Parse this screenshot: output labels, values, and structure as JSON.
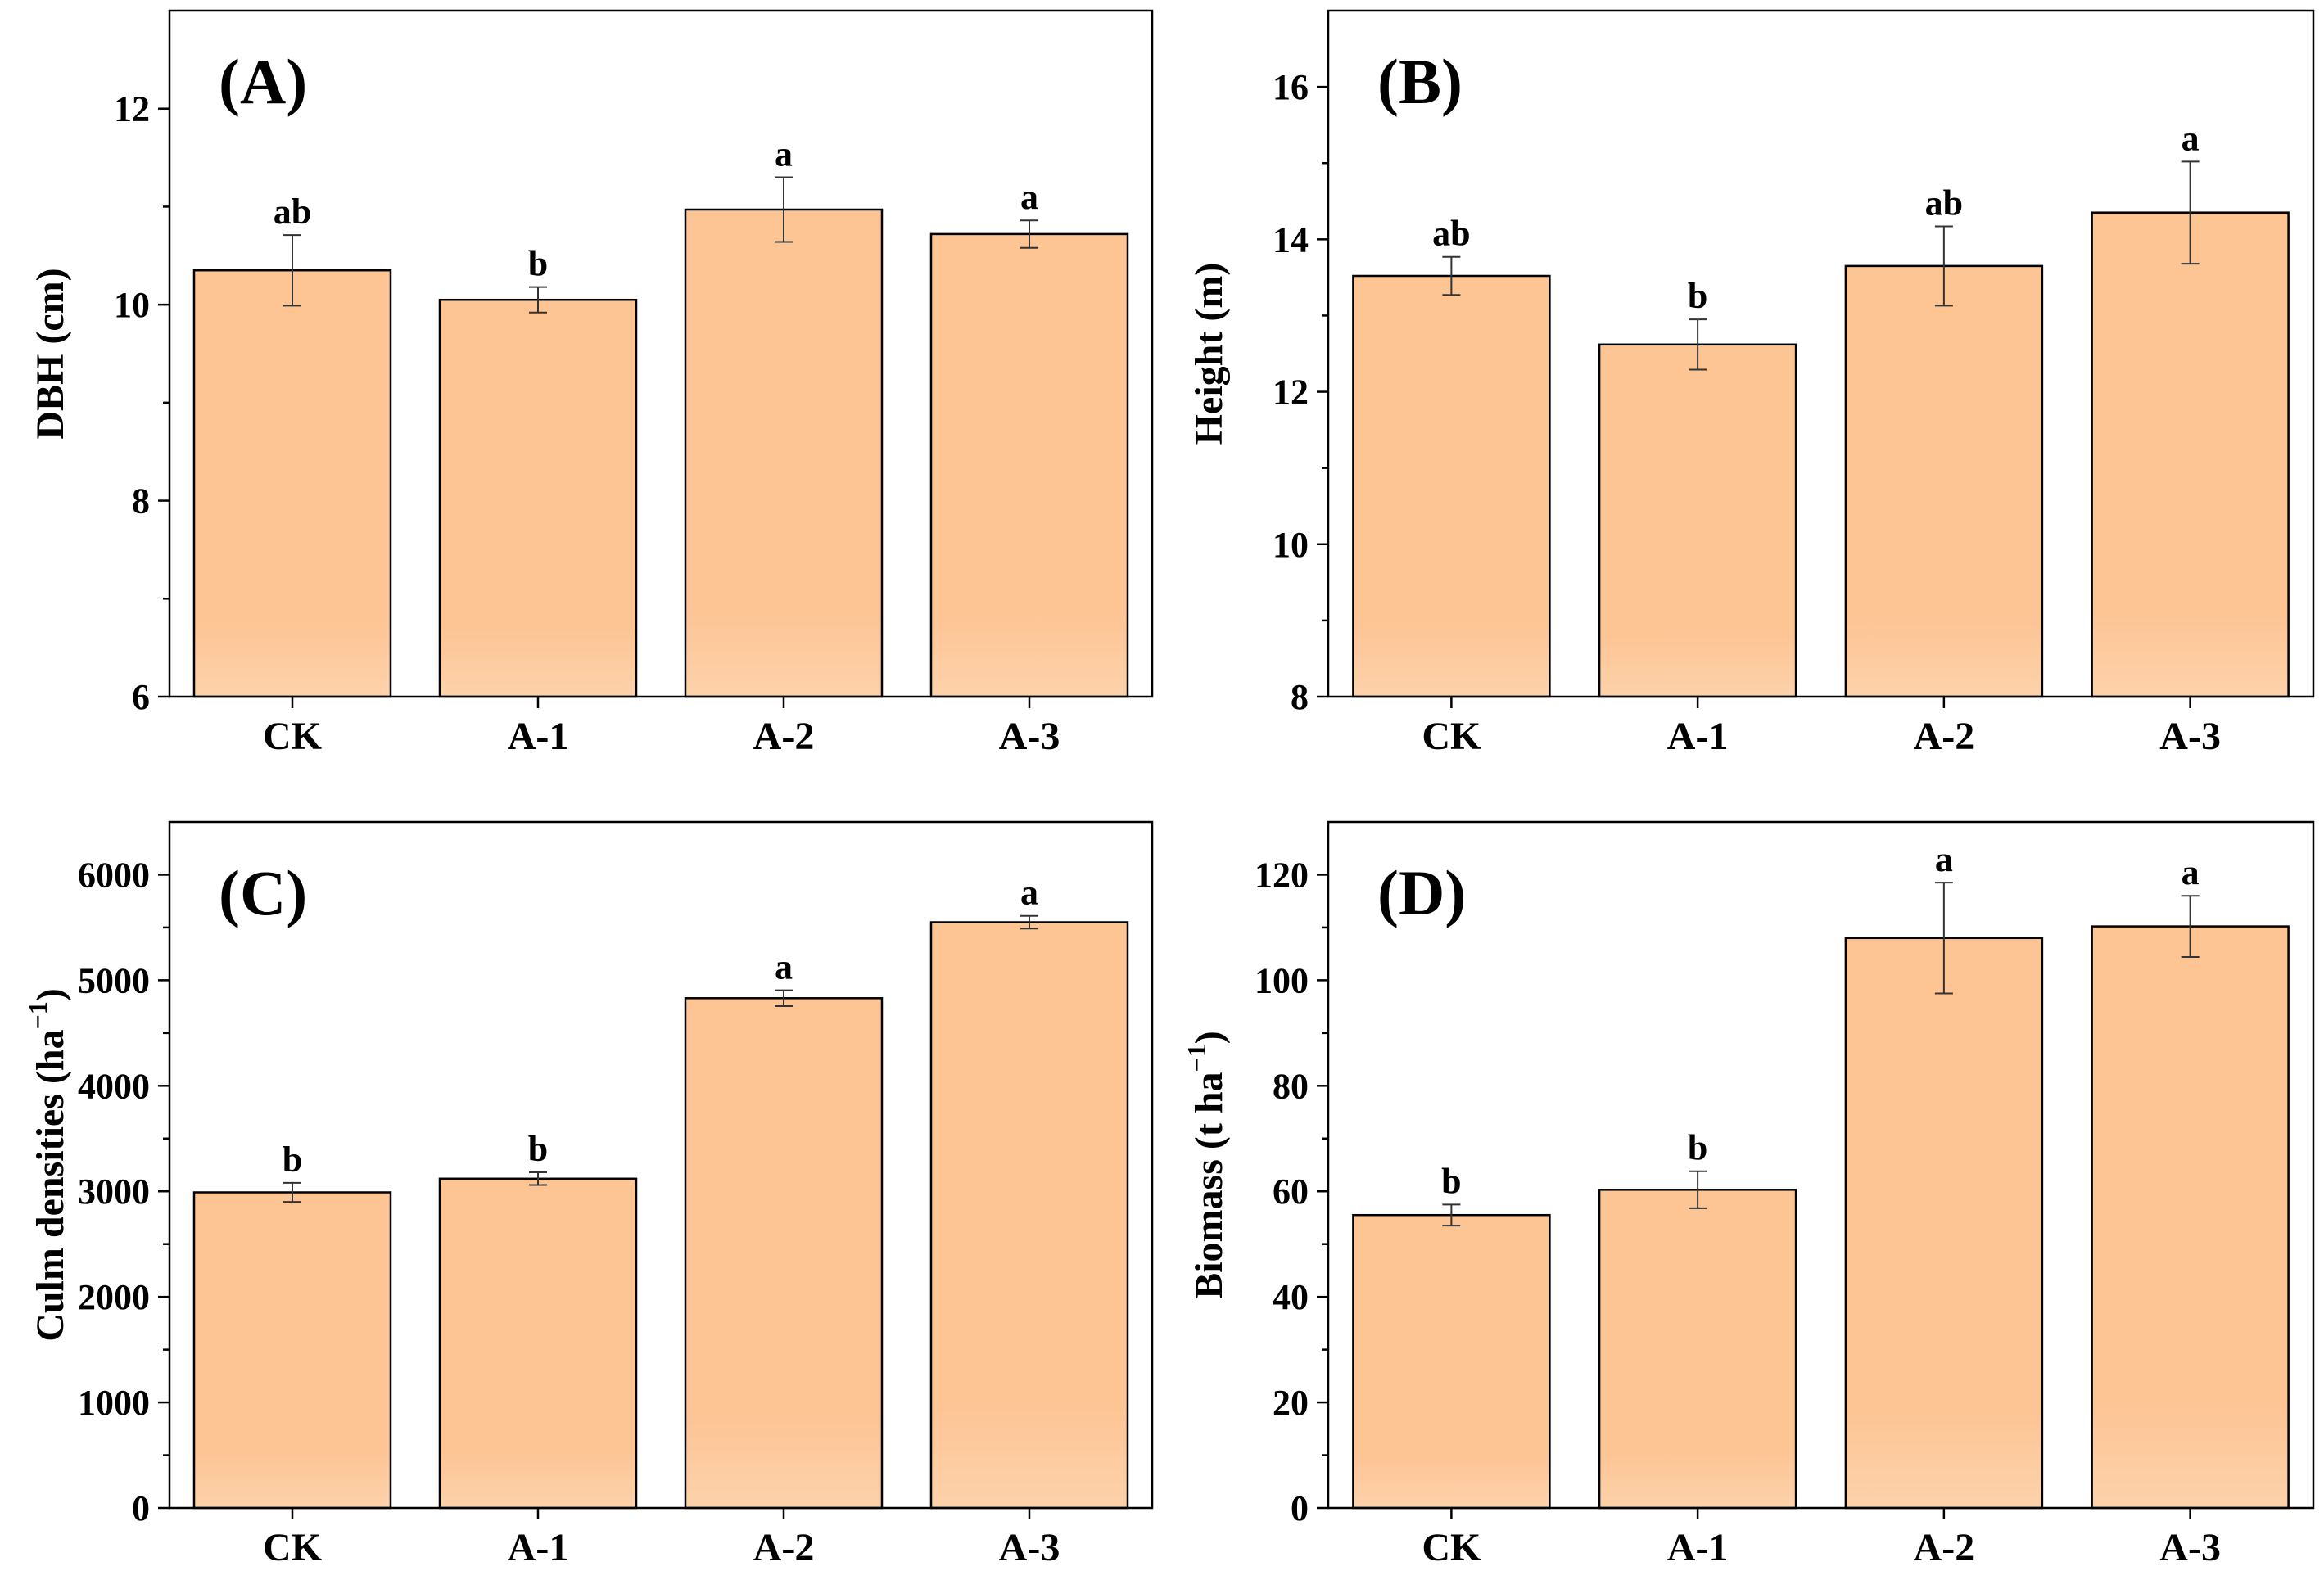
{
  "chart_data": [
    {
      "type": "bar",
      "panel_label": "(A)",
      "categories": [
        "CK",
        "A-1",
        "A-2",
        "A-3"
      ],
      "values": [
        10.35,
        10.05,
        10.97,
        10.72
      ],
      "errors": [
        0.36,
        0.13,
        0.33,
        0.14
      ],
      "significance": [
        "ab",
        "b",
        "a",
        "a"
      ],
      "xlabel": "",
      "ylabel": "DBH (cm)",
      "ylim": [
        6,
        13
      ],
      "yticks": [
        6,
        8,
        10,
        12
      ],
      "ytick_labels": [
        "6",
        "8",
        "10",
        "12"
      ],
      "bar_color": "#fdc494",
      "grid": false
    },
    {
      "type": "bar",
      "panel_label": "(B)",
      "categories": [
        "CK",
        "A-1",
        "A-2",
        "A-3"
      ],
      "values": [
        13.52,
        12.62,
        13.65,
        14.35
      ],
      "errors": [
        0.25,
        0.33,
        0.52,
        0.67
      ],
      "significance": [
        "ab",
        "b",
        "ab",
        "a"
      ],
      "xlabel": "",
      "ylabel": "Height (m)",
      "ylim": [
        8,
        17
      ],
      "yticks": [
        8,
        10,
        12,
        14,
        16
      ],
      "ytick_labels": [
        "8",
        "10",
        "12",
        "14",
        "16"
      ],
      "bar_color": "#fdc494",
      "grid": false
    },
    {
      "type": "bar",
      "panel_label": "(C)",
      "categories": [
        "CK",
        "A-1",
        "A-2",
        "A-3"
      ],
      "values": [
        2990,
        3120,
        4830,
        5550
      ],
      "errors": [
        90,
        60,
        75,
        60
      ],
      "significance": [
        "b",
        "b",
        "a",
        "a"
      ],
      "xlabel": "",
      "ylabel": "Culm densities (ha",
      "ylabel_sup": "−1",
      "ylabel_end": ")",
      "ylim": [
        0,
        6500
      ],
      "yticks": [
        0,
        1000,
        2000,
        3000,
        4000,
        5000,
        6000
      ],
      "ytick_labels": [
        "0",
        "1000",
        "2000",
        "3000",
        "4000",
        "5000",
        "6000"
      ],
      "bar_color": "#fdc494",
      "grid": false
    },
    {
      "type": "bar",
      "panel_label": "(D)",
      "categories": [
        "CK",
        "A-1",
        "A-2",
        "A-3"
      ],
      "values": [
        55.5,
        60.3,
        108.0,
        110.2
      ],
      "errors": [
        2.0,
        3.5,
        10.5,
        5.8
      ],
      "significance": [
        "b",
        "b",
        "a",
        "a"
      ],
      "xlabel": "",
      "ylabel": "Biomass (t ha",
      "ylabel_sup": "−1",
      "ylabel_end": ")",
      "ylim": [
        0,
        130
      ],
      "yticks": [
        0,
        20,
        40,
        60,
        80,
        100,
        120
      ],
      "ytick_labels": [
        "0",
        "20",
        "40",
        "60",
        "80",
        "100",
        "120"
      ],
      "bar_color": "#fdc494",
      "grid": false
    }
  ]
}
